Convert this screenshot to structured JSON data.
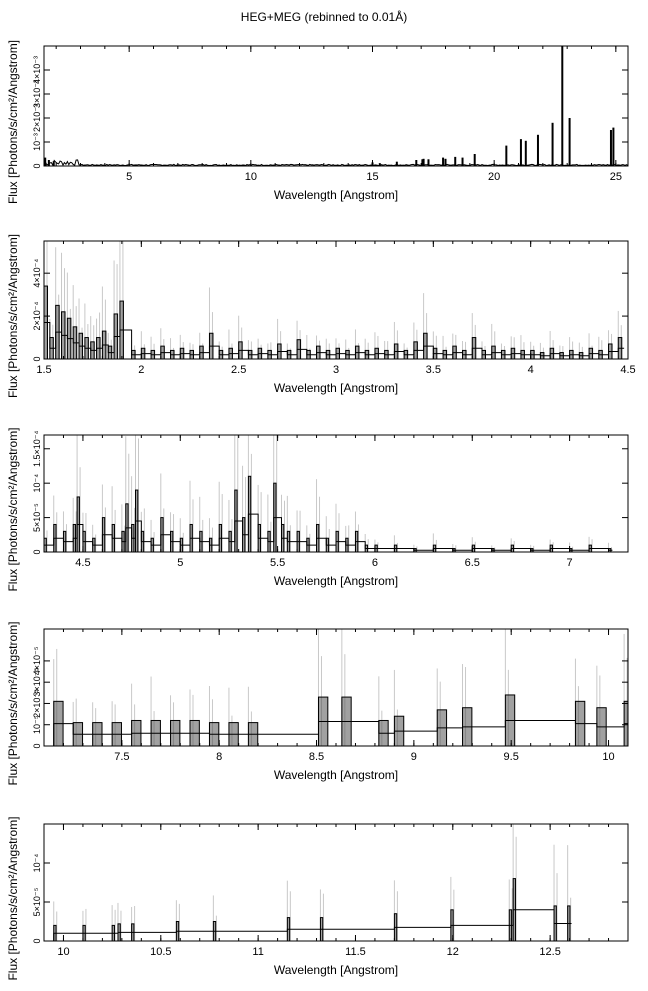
{
  "title": "HEG+MEG (rebinned to 0.01Å)",
  "colors": {
    "axis": "#000000",
    "histogram": "#000000",
    "error_bars": "#c8c8c8",
    "background": "#ffffff"
  },
  "chart_data": [
    {
      "type": "histogram",
      "xlabel": "Wavelength [Angstrom]",
      "ylabel": "Flux [Photons/s/cm²/Angstrom]",
      "xlim": [
        1.5,
        25.5
      ],
      "ylim": [
        0,
        0.005
      ],
      "xticks": [
        5,
        10,
        15,
        20,
        25
      ],
      "xtick_labels": [
        "5",
        "10",
        "15",
        "20",
        "25"
      ],
      "yticks": [
        0,
        0.001,
        0.002,
        0.003,
        0.004
      ],
      "ytick_labels": [
        "0",
        "10⁻³",
        "2×10⁻³",
        "3×10⁻³",
        "4×10⁻³"
      ],
      "baseline": {
        "from": 1.5,
        "to": 25.5,
        "value": 4e-05
      },
      "lines": [
        {
          "x": 1.55,
          "y": 0.00035
        },
        {
          "x": 1.7,
          "y": 0.00025
        },
        {
          "x": 1.9,
          "y": 0.0002
        },
        {
          "x": 15.0,
          "y": 0.00015
        },
        {
          "x": 15.3,
          "y": 0.00012
        },
        {
          "x": 16.0,
          "y": 0.00018
        },
        {
          "x": 16.8,
          "y": 0.00025
        },
        {
          "x": 17.05,
          "y": 0.00028
        },
        {
          "x": 17.1,
          "y": 0.0003
        },
        {
          "x": 17.3,
          "y": 0.00028
        },
        {
          "x": 17.9,
          "y": 0.00035
        },
        {
          "x": 18.0,
          "y": 0.0003
        },
        {
          "x": 18.4,
          "y": 0.00038
        },
        {
          "x": 18.7,
          "y": 0.00035
        },
        {
          "x": 19.2,
          "y": 0.0005
        },
        {
          "x": 20.5,
          "y": 0.00085
        },
        {
          "x": 21.1,
          "y": 0.00112
        },
        {
          "x": 21.3,
          "y": 0.00105
        },
        {
          "x": 21.8,
          "y": 0.0013
        },
        {
          "x": 22.4,
          "y": 0.0018
        },
        {
          "x": 22.8,
          "y": 0.0051
        },
        {
          "x": 23.1,
          "y": 0.002
        },
        {
          "x": 24.8,
          "y": 0.0015
        },
        {
          "x": 24.9,
          "y": 0.0016
        }
      ]
    },
    {
      "type": "histogram",
      "xlabel": "Wavelength [Angstrom]",
      "ylabel": "Flux [Photons/s/cm²/Angstrom]",
      "xlim": [
        1.5,
        4.5
      ],
      "ylim": [
        0,
        0.00055
      ],
      "xticks": [
        1.5,
        2,
        2.5,
        3,
        3.5,
        4,
        4.5
      ],
      "xtick_labels": [
        "1.5",
        "2",
        "2.5",
        "3",
        "3.5",
        "4",
        "4.5"
      ],
      "yticks": [
        0,
        0.0002,
        0.0004
      ],
      "ytick_labels": [
        "0",
        "2×10⁻⁴",
        "4×10⁻⁴"
      ],
      "points": [
        [
          1.5,
          0.00034
        ],
        [
          1.53,
          0.0001
        ],
        [
          1.56,
          0.00025
        ],
        [
          1.59,
          0.00022
        ],
        [
          1.62,
          0.00019
        ],
        [
          1.65,
          0.00015
        ],
        [
          1.68,
          0.00012
        ],
        [
          1.71,
          0.0001
        ],
        [
          1.74,
          8e-05
        ],
        [
          1.77,
          0.0001
        ],
        [
          1.8,
          0.00013
        ],
        [
          1.83,
          6e-05
        ],
        [
          1.86,
          0.00021
        ],
        [
          1.89,
          0.00027
        ],
        [
          1.95,
          4e-05
        ],
        [
          2.0,
          5e-05
        ],
        [
          2.05,
          4e-05
        ],
        [
          2.1,
          6e-05
        ],
        [
          2.15,
          4e-05
        ],
        [
          2.2,
          5e-05
        ],
        [
          2.25,
          4e-05
        ],
        [
          2.3,
          6e-05
        ],
        [
          2.35,
          0.00012
        ],
        [
          2.4,
          4e-05
        ],
        [
          2.45,
          5e-05
        ],
        [
          2.5,
          8e-05
        ],
        [
          2.55,
          4e-05
        ],
        [
          2.6,
          5e-05
        ],
        [
          2.65,
          4e-05
        ],
        [
          2.7,
          7e-05
        ],
        [
          2.75,
          4e-05
        ],
        [
          2.8,
          9e-05
        ],
        [
          2.85,
          4e-05
        ],
        [
          2.9,
          6e-05
        ],
        [
          2.95,
          4e-05
        ],
        [
          3.0,
          5e-05
        ],
        [
          3.05,
          4e-05
        ],
        [
          3.1,
          6e-05
        ],
        [
          3.15,
          4e-05
        ],
        [
          3.2,
          5e-05
        ],
        [
          3.25,
          4e-05
        ],
        [
          3.3,
          7e-05
        ],
        [
          3.35,
          4e-05
        ],
        [
          3.4,
          8e-05
        ],
        [
          3.45,
          0.00012
        ],
        [
          3.5,
          5e-05
        ],
        [
          3.55,
          4e-05
        ],
        [
          3.6,
          6e-05
        ],
        [
          3.65,
          4e-05
        ],
        [
          3.7,
          0.0001
        ],
        [
          3.75,
          4e-05
        ],
        [
          3.8,
          6e-05
        ],
        [
          3.85,
          4e-05
        ],
        [
          3.9,
          5e-05
        ],
        [
          3.95,
          4e-05
        ],
        [
          4.0,
          4e-05
        ],
        [
          4.05,
          3e-05
        ],
        [
          4.1,
          5e-05
        ],
        [
          4.15,
          3e-05
        ],
        [
          4.2,
          4e-05
        ],
        [
          4.25,
          3e-05
        ],
        [
          4.3,
          5e-05
        ],
        [
          4.35,
          4e-05
        ],
        [
          4.4,
          7e-05
        ],
        [
          4.45,
          0.0001
        ]
      ]
    },
    {
      "type": "histogram",
      "xlabel": "Wavelength [Angstrom]",
      "ylabel": "Flux [Photons/s/cm²/Angstrom]",
      "xlim": [
        4.3,
        7.3
      ],
      "ylim": [
        0,
        0.00017
      ],
      "xticks": [
        4.5,
        5,
        5.5,
        6,
        6.5,
        7
      ],
      "xtick_labels": [
        "4.5",
        "5",
        "5.5",
        "6",
        "6.5",
        "7"
      ],
      "yticks": [
        0,
        5e-05,
        0.0001,
        0.00015
      ],
      "ytick_labels": [
        "0",
        "5×10⁻⁵",
        "10⁻⁴",
        "1.5×10⁻⁴"
      ],
      "points": [
        [
          4.3,
          2e-05
        ],
        [
          4.35,
          4e-05
        ],
        [
          4.4,
          3e-05
        ],
        [
          4.45,
          4e-05
        ],
        [
          4.47,
          8e-05
        ],
        [
          4.5,
          3e-05
        ],
        [
          4.55,
          2e-05
        ],
        [
          4.6,
          5e-05
        ],
        [
          4.65,
          4e-05
        ],
        [
          4.7,
          3e-05
        ],
        [
          4.72,
          7e-05
        ],
        [
          4.75,
          4e-05
        ],
        [
          4.77,
          9e-05
        ],
        [
          4.8,
          3e-05
        ],
        [
          4.85,
          2e-05
        ],
        [
          4.9,
          5e-05
        ],
        [
          4.95,
          3e-05
        ],
        [
          5.0,
          2e-05
        ],
        [
          5.05,
          4e-05
        ],
        [
          5.1,
          3e-05
        ],
        [
          5.15,
          2e-05
        ],
        [
          5.2,
          4e-05
        ],
        [
          5.25,
          3e-05
        ],
        [
          5.28,
          9e-05
        ],
        [
          5.32,
          5e-05
        ],
        [
          5.35,
          0.00011
        ],
        [
          5.4,
          4e-05
        ],
        [
          5.45,
          3e-05
        ],
        [
          5.48,
          0.0001
        ],
        [
          5.52,
          4e-05
        ],
        [
          5.55,
          3e-05
        ],
        [
          5.6,
          3e-05
        ],
        [
          5.65,
          2e-05
        ],
        [
          5.7,
          4e-05
        ],
        [
          5.75,
          2e-05
        ],
        [
          5.8,
          3e-05
        ],
        [
          5.85,
          2e-05
        ],
        [
          5.9,
          3e-05
        ],
        [
          5.95,
          1e-05
        ],
        [
          6.0,
          1e-05
        ],
        [
          6.1,
          1e-05
        ],
        [
          6.2,
          5e-06
        ],
        [
          6.3,
          1e-05
        ],
        [
          6.4,
          5e-06
        ],
        [
          6.5,
          1e-05
        ],
        [
          6.6,
          5e-06
        ],
        [
          6.7,
          1e-05
        ],
        [
          6.8,
          5e-06
        ],
        [
          6.9,
          1e-05
        ],
        [
          7.0,
          5e-06
        ],
        [
          7.1,
          1e-05
        ],
        [
          7.2,
          5e-06
        ]
      ]
    },
    {
      "type": "histogram",
      "xlabel": "Wavelength [Angstrom]",
      "ylabel": "Flux [Photons/s/cm²/Angstrom]",
      "xlim": [
        7.1,
        10.1
      ],
      "ylim": [
        0,
        5.5e-05
      ],
      "xticks": [
        7.5,
        8,
        8.5,
        9,
        9.5,
        10
      ],
      "xtick_labels": [
        "7.5",
        "8",
        "8.5",
        "9",
        "9.5",
        "10"
      ],
      "yticks": [
        0,
        1e-05,
        2e-05,
        3e-05,
        4e-05
      ],
      "ytick_labels": [
        "0",
        "10⁻⁵",
        "2×10⁻⁵",
        "3×10⁻⁵",
        "4×10⁻⁵"
      ],
      "points": [
        [
          7.15,
          2.1e-05
        ],
        [
          7.25,
          1.1e-05
        ],
        [
          7.35,
          1.1e-05
        ],
        [
          7.45,
          1.1e-05
        ],
        [
          7.55,
          1.2e-05
        ],
        [
          7.65,
          1.2e-05
        ],
        [
          7.75,
          1.2e-05
        ],
        [
          7.85,
          1.2e-05
        ],
        [
          7.95,
          1.1e-05
        ],
        [
          8.05,
          1.1e-05
        ],
        [
          8.15,
          1.1e-05
        ],
        [
          8.51,
          2.3e-05
        ],
        [
          8.63,
          2.3e-05
        ],
        [
          8.82,
          1.2e-05
        ],
        [
          8.9,
          1.4e-05
        ],
        [
          9.12,
          1.7e-05
        ],
        [
          9.25,
          1.8e-05
        ],
        [
          9.47,
          2.4e-05
        ],
        [
          9.83,
          2.1e-05
        ],
        [
          9.94,
          1.8e-05
        ],
        [
          10.08,
          2.1e-05
        ]
      ]
    },
    {
      "type": "histogram",
      "xlabel": "Wavelength [Angstrom]",
      "ylabel": "Flux [Photons/s/cm²/Angstrom]",
      "xlim": [
        9.9,
        12.9
      ],
      "ylim": [
        0,
        0.00015
      ],
      "xticks": [
        10,
        10.5,
        11,
        11.5,
        12,
        12.5
      ],
      "xtick_labels": [
        "10",
        "10.5",
        "11",
        "11.5",
        "12",
        "12.5"
      ],
      "yticks": [
        0,
        5e-05,
        0.0001
      ],
      "ytick_labels": [
        "0",
        "5×10⁻⁵",
        "10⁻⁴"
      ],
      "points": [
        [
          9.95,
          2e-05
        ],
        [
          10.1,
          2e-05
        ],
        [
          10.25,
          2e-05
        ],
        [
          10.28,
          2.2e-05
        ],
        [
          10.35,
          2.2e-05
        ],
        [
          10.58,
          2.5e-05
        ],
        [
          10.77,
          2.5e-05
        ],
        [
          11.15,
          3e-05
        ],
        [
          11.32,
          3e-05
        ],
        [
          11.7,
          3.5e-05
        ],
        [
          11.99,
          4e-05
        ],
        [
          12.29,
          4e-05
        ],
        [
          12.31,
          8e-05
        ],
        [
          12.52,
          4.5e-05
        ],
        [
          12.59,
          4.5e-05
        ]
      ]
    }
  ]
}
